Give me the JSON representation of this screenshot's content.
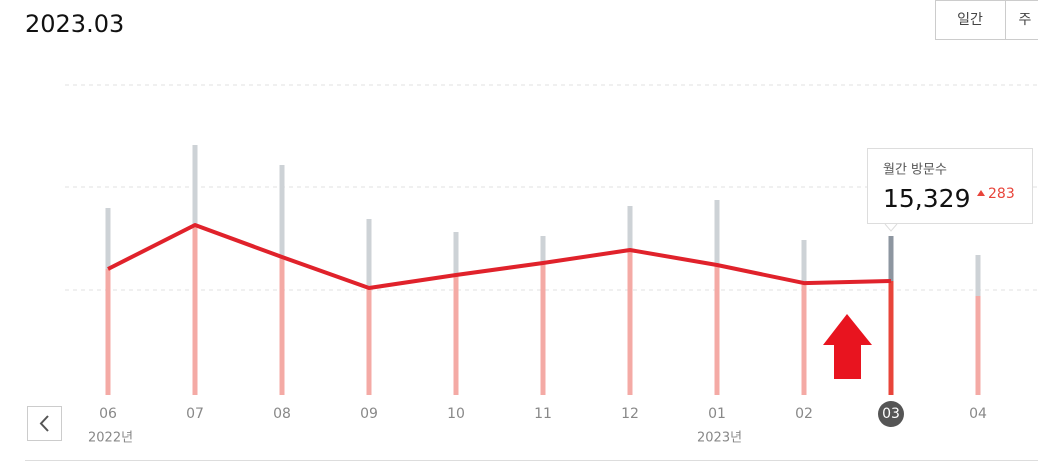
{
  "header": {
    "title": "2023.03",
    "tabs": [
      "일간",
      "주"
    ]
  },
  "chart_data": {
    "type": "bar",
    "categories": [
      "06",
      "07",
      "08",
      "09",
      "10",
      "11",
      "12",
      "01",
      "02",
      "03",
      "04"
    ],
    "year_labels": [
      "2022년",
      null,
      null,
      null,
      null,
      null,
      null,
      "2023년",
      null,
      null,
      null
    ],
    "selected": "03",
    "ylim": [
      0,
      41683
    ],
    "series": [
      {
        "color": "#cdd2d6",
        "highlight_color": "#8d96a0",
        "values": [
          25144,
          33615,
          30926,
          23665,
          21917,
          21379,
          25413,
          26220,
          20841,
          21379,
          18824
        ]
      },
      {
        "color": "#f4aaa5",
        "highlight_color": "#e8443a",
        "values": [
          16942,
          22858,
          18556,
          14387,
          16135,
          17749,
          19497,
          17480,
          15046,
          15329,
          13311
        ],
        "value_labels": [
          null,
          null,
          null,
          null,
          null,
          null,
          null,
          null,
          null,
          "15,329",
          null
        ]
      },
      {
        "type": "line",
        "color": "#e0222b",
        "values": [
          16942,
          22858,
          18556,
          14387,
          16135,
          17749,
          19497,
          17480,
          15046,
          15329,
          null
        ]
      }
    ],
    "tooltip": {
      "label": "월간 방문수",
      "change": 283
    }
  }
}
